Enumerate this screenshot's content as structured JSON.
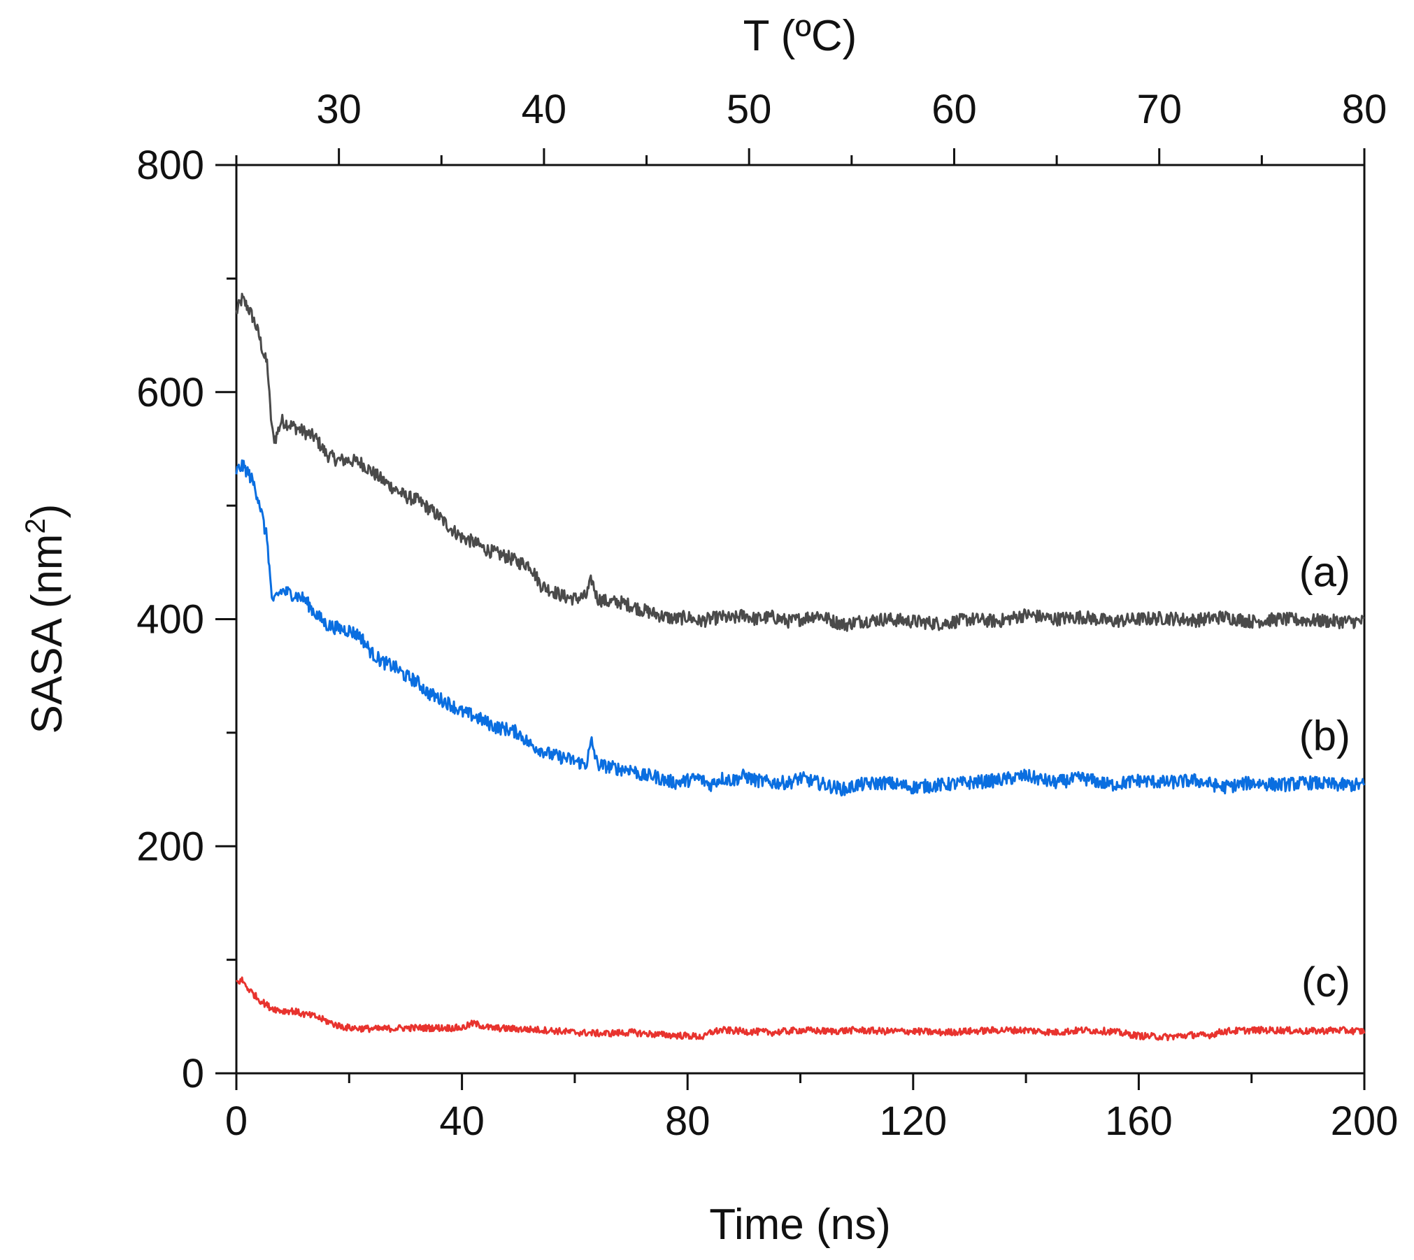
{
  "chart_data": {
    "type": "line",
    "title": "",
    "xlabel": "Time (ns)",
    "ylabel": "SASA (nm",
    "ylabel_superscript": "2",
    "ylabel_suffix": ")",
    "top_xlabel": "T (ºC)",
    "xlim": [
      0,
      200
    ],
    "ylim": [
      0,
      800
    ],
    "top_xlim": [
      25,
      80
    ],
    "x_ticks": [
      "0",
      "40",
      "80",
      "120",
      "160",
      "200"
    ],
    "x_tick_values": [
      0,
      40,
      80,
      120,
      160,
      200
    ],
    "y_ticks": [
      "0",
      "200",
      "400",
      "600",
      "800"
    ],
    "y_tick_values": [
      0,
      200,
      400,
      600,
      800
    ],
    "top_ticks": [
      "30",
      "40",
      "50",
      "60",
      "70",
      "80"
    ],
    "top_tick_values": [
      30,
      40,
      50,
      60,
      70,
      80
    ],
    "grid": false,
    "series": [
      {
        "name": "(a)",
        "color": "#4a4a4a",
        "x": [
          0,
          1,
          2,
          3,
          4,
          5,
          5.5,
          6,
          6.5,
          7,
          8,
          10,
          12,
          14,
          16,
          18,
          20,
          22,
          24,
          26,
          28,
          30,
          32,
          34,
          36,
          38,
          40,
          42,
          44,
          46,
          48,
          50,
          52,
          54,
          56,
          58,
          60,
          62,
          63,
          64,
          66,
          68,
          70,
          72,
          74,
          76,
          78,
          80,
          82,
          84,
          86,
          88,
          90,
          92,
          95,
          98,
          100,
          103,
          106,
          108,
          110,
          115,
          120,
          125,
          130,
          135,
          140,
          145,
          150,
          155,
          160,
          165,
          170,
          175,
          180,
          185,
          190,
          195,
          200
        ],
        "values": [
          670,
          682,
          675,
          665,
          650,
          630,
          625,
          585,
          560,
          560,
          575,
          570,
          565,
          560,
          545,
          540,
          540,
          538,
          530,
          522,
          515,
          508,
          505,
          498,
          490,
          480,
          472,
          468,
          462,
          458,
          455,
          450,
          448,
          430,
          425,
          420,
          418,
          420,
          435,
          418,
          415,
          415,
          412,
          408,
          405,
          402,
          400,
          402,
          398,
          400,
          402,
          400,
          404,
          400,
          402,
          398,
          400,
          404,
          398,
          395,
          398,
          400,
          398,
          396,
          400,
          398,
          404,
          400,
          402,
          398,
          400,
          401,
          399,
          402,
          398,
          400,
          399,
          398,
          398
        ]
      },
      {
        "name": "(b)",
        "color": "#0a6ee0",
        "x": [
          0,
          1,
          2,
          3,
          4,
          5,
          5.5,
          6,
          6.5,
          7,
          8,
          10,
          12,
          14,
          16,
          18,
          20,
          22,
          24,
          26,
          28,
          30,
          32,
          34,
          36,
          38,
          40,
          42,
          44,
          46,
          48,
          50,
          52,
          54,
          56,
          58,
          60,
          62,
          63,
          64,
          66,
          68,
          70,
          72,
          74,
          76,
          78,
          80,
          82,
          84,
          86,
          88,
          90,
          92,
          95,
          98,
          100,
          103,
          106,
          108,
          110,
          115,
          120,
          125,
          130,
          135,
          140,
          145,
          150,
          155,
          160,
          165,
          170,
          175,
          180,
          185,
          190,
          195,
          200
        ],
        "values": [
          530,
          535,
          530,
          520,
          505,
          480,
          470,
          435,
          410,
          420,
          425,
          422,
          418,
          405,
          395,
          392,
          390,
          385,
          370,
          362,
          358,
          350,
          345,
          335,
          330,
          325,
          318,
          315,
          310,
          305,
          303,
          300,
          290,
          285,
          280,
          278,
          275,
          272,
          292,
          272,
          270,
          268,
          268,
          262,
          262,
          258,
          256,
          258,
          260,
          254,
          260,
          258,
          262,
          258,
          256,
          256,
          260,
          256,
          252,
          250,
          254,
          256,
          252,
          254,
          256,
          258,
          262,
          256,
          260,
          254,
          258,
          256,
          258,
          252,
          256,
          254,
          256,
          254,
          254
        ]
      },
      {
        "name": "(c)",
        "color": "#e8332e",
        "x": [
          0,
          1,
          2,
          3,
          4,
          6,
          8,
          10,
          12,
          14,
          16,
          18,
          20,
          25,
          30,
          35,
          40,
          42,
          45,
          50,
          55,
          60,
          65,
          70,
          75,
          80,
          83,
          84,
          86,
          90,
          95,
          100,
          105,
          110,
          115,
          120,
          125,
          130,
          135,
          140,
          145,
          150,
          155,
          160,
          165,
          170,
          172,
          175,
          180,
          185,
          190,
          195,
          200
        ],
        "values": [
          80,
          82,
          75,
          70,
          65,
          58,
          55,
          55,
          52,
          50,
          46,
          42,
          40,
          39,
          40,
          40,
          40,
          44,
          40,
          39,
          38,
          36,
          35,
          36,
          34,
          33,
          32,
          36,
          38,
          37,
          36,
          38,
          37,
          38,
          37,
          37,
          36,
          37,
          38,
          38,
          36,
          38,
          37,
          33,
          32,
          34,
          33,
          37,
          38,
          38,
          37,
          38,
          37
        ]
      }
    ]
  }
}
